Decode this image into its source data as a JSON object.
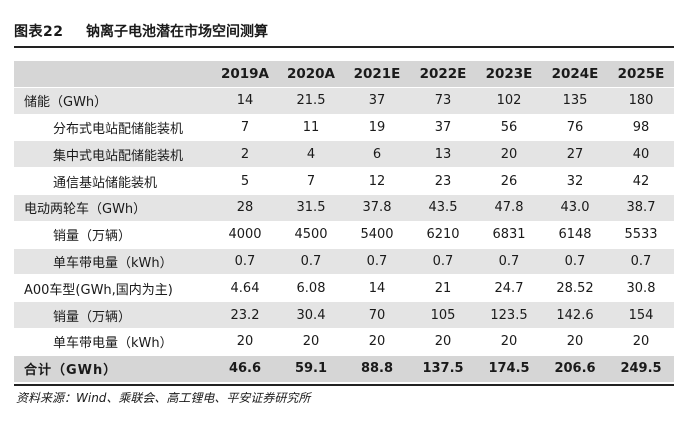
{
  "figure": {
    "label": "图表22",
    "title": "钠离子电池潜在市场空间测算"
  },
  "table": {
    "columns": [
      "2019A",
      "2020A",
      "2021E",
      "2022E",
      "2023E",
      "2024E",
      "2025E"
    ],
    "rows": [
      {
        "label": "储能（GWh）",
        "indent": false,
        "shaded": true,
        "values": [
          "14",
          "21.5",
          "37",
          "73",
          "102",
          "135",
          "180"
        ]
      },
      {
        "label": "分布式电站配储能装机",
        "indent": true,
        "shaded": false,
        "values": [
          "7",
          "11",
          "19",
          "37",
          "56",
          "76",
          "98"
        ]
      },
      {
        "label": "集中式电站配储能装机",
        "indent": true,
        "shaded": true,
        "values": [
          "2",
          "4",
          "6",
          "13",
          "20",
          "27",
          "40"
        ]
      },
      {
        "label": "通信基站储能装机",
        "indent": true,
        "shaded": false,
        "values": [
          "5",
          "7",
          "12",
          "23",
          "26",
          "32",
          "42"
        ]
      },
      {
        "label": "电动两轮车（GWh）",
        "indent": false,
        "shaded": true,
        "values": [
          "28",
          "31.5",
          "37.8",
          "43.5",
          "47.8",
          "43.0",
          "38.7"
        ]
      },
      {
        "label": "销量（万辆）",
        "indent": true,
        "shaded": false,
        "values": [
          "4000",
          "4500",
          "5400",
          "6210",
          "6831",
          "6148",
          "5533"
        ]
      },
      {
        "label": "单车带电量（kWh）",
        "indent": true,
        "shaded": true,
        "values": [
          "0.7",
          "0.7",
          "0.7",
          "0.7",
          "0.7",
          "0.7",
          "0.7"
        ]
      },
      {
        "label": "A00车型(GWh,国内为主)",
        "indent": false,
        "shaded": false,
        "values": [
          "4.64",
          "6.08",
          "14",
          "21",
          "24.7",
          "28.52",
          "30.8"
        ]
      },
      {
        "label": "销量（万辆）",
        "indent": true,
        "shaded": true,
        "values": [
          "23.2",
          "30.4",
          "70",
          "105",
          "123.5",
          "142.6",
          "154"
        ]
      },
      {
        "label": "单车带电量（kWh）",
        "indent": true,
        "shaded": false,
        "values": [
          "20",
          "20",
          "20",
          "20",
          "20",
          "20",
          "20"
        ]
      }
    ],
    "total": {
      "label": "合计（GWh）",
      "values": [
        "46.6",
        "59.1",
        "88.8",
        "137.5",
        "174.5",
        "206.6",
        "249.5"
      ]
    }
  },
  "source": "资料来源：Wind、乘联会、高工锂电、平安证券研究所"
}
